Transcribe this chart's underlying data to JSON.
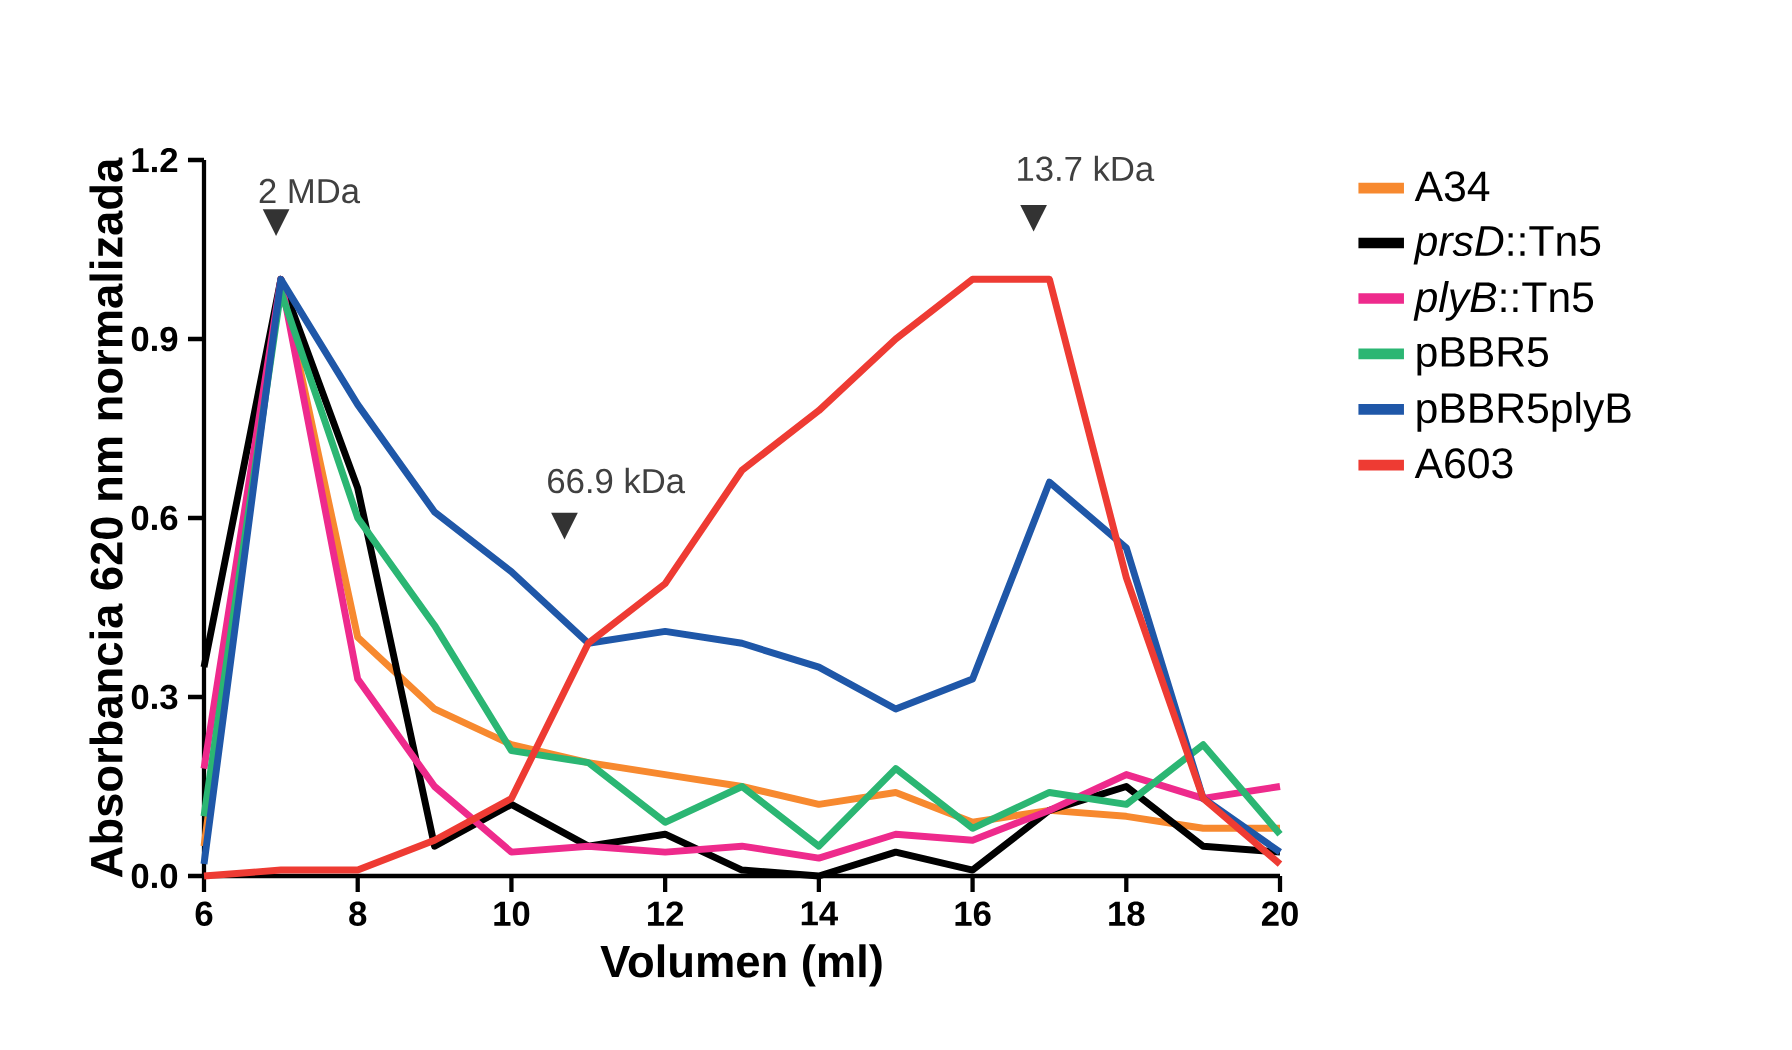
{
  "chart_data": {
    "type": "line",
    "xlabel": "Volumen (ml)",
    "ylabel": "Absorbancia 620 nm normalizada",
    "x": [
      6,
      7,
      8,
      9,
      10,
      11,
      12,
      13,
      14,
      15,
      16,
      17,
      18,
      19,
      20
    ],
    "series": [
      {
        "name": "A34",
        "color": "#f7892f",
        "values": [
          0.05,
          1.0,
          0.4,
          0.28,
          0.22,
          0.19,
          0.17,
          0.15,
          0.12,
          0.14,
          0.09,
          0.11,
          0.1,
          0.08,
          0.08
        ]
      },
      {
        "name": "*prsD*::Tn5",
        "color": "#000000",
        "values": [
          0.35,
          1.0,
          0.65,
          0.05,
          0.12,
          0.05,
          0.07,
          0.01,
          0.0,
          0.04,
          0.01,
          0.11,
          0.15,
          0.05,
          0.04
        ]
      },
      {
        "name": "*plyB*::Tn5",
        "color": "#ee2a8c",
        "values": [
          0.18,
          1.0,
          0.33,
          0.15,
          0.04,
          0.05,
          0.04,
          0.05,
          0.03,
          0.07,
          0.06,
          0.11,
          0.17,
          0.13,
          0.15
        ]
      },
      {
        "name": "pBBR5",
        "color": "#2bb673",
        "values": [
          0.1,
          0.98,
          0.6,
          0.42,
          0.21,
          0.19,
          0.09,
          0.15,
          0.05,
          0.18,
          0.08,
          0.14,
          0.12,
          0.22,
          0.07
        ]
      },
      {
        "name": "pBBR5plyB",
        "color": "#1f57a8",
        "values": [
          0.02,
          1.0,
          0.79,
          0.61,
          0.51,
          0.39,
          0.41,
          0.39,
          0.35,
          0.28,
          0.33,
          0.66,
          0.55,
          0.13,
          0.04
        ]
      },
      {
        "name": "A603",
        "color": "#ee3b33",
        "values": [
          0.0,
          0.01,
          0.01,
          0.06,
          0.13,
          0.39,
          0.49,
          0.68,
          0.78,
          0.9,
          1.0,
          1.0,
          0.5,
          0.13,
          0.02
        ]
      }
    ],
    "xlim": [
      6,
      20
    ],
    "ylim": [
      0,
      1.2
    ],
    "xticks": [
      6,
      8,
      10,
      12,
      14,
      16,
      18,
      20
    ],
    "yticks": [
      {
        "value": 0,
        "label": "0.0"
      },
      {
        "value": 0.3,
        "label": "0.3"
      },
      {
        "value": 0.6,
        "label": "0.6"
      },
      {
        "value": 0.9,
        "label": "0.9"
      },
      {
        "value": 1.2,
        "label": "1.2"
      }
    ],
    "annotations": [
      "2 MDa",
      "66.9 kDa",
      "13.7 kDa"
    ],
    "grid": false,
    "legend": "right",
    "marker": "none",
    "line_style": "solid"
  }
}
